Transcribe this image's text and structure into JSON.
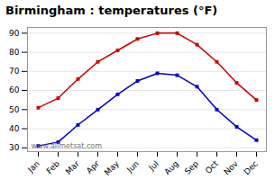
{
  "chart_data": {
    "type": "line",
    "title": "Birmingham : temperatures (°F)",
    "categories": [
      "Jan",
      "Feb",
      "Mar",
      "Apr",
      "May",
      "Jun",
      "Jul",
      "Aug",
      "Sep",
      "Oct",
      "Nov",
      "Dec"
    ],
    "series": [
      {
        "color": "#cc0000",
        "values": [
          51,
          56,
          66,
          75,
          81,
          87,
          90,
          90,
          84,
          75,
          64,
          55
        ],
        "marker": "square"
      },
      {
        "color": "#0000cc",
        "values": [
          31,
          33,
          42,
          50,
          58,
          65,
          69,
          68,
          62,
          50,
          41,
          34
        ],
        "marker": "square"
      }
    ],
    "ylim": [
      28,
      93
    ],
    "yticks": [
      30,
      40,
      50,
      60,
      70,
      80,
      90
    ],
    "grid": true,
    "annotations": [
      "www.allmetsat.com"
    ]
  }
}
